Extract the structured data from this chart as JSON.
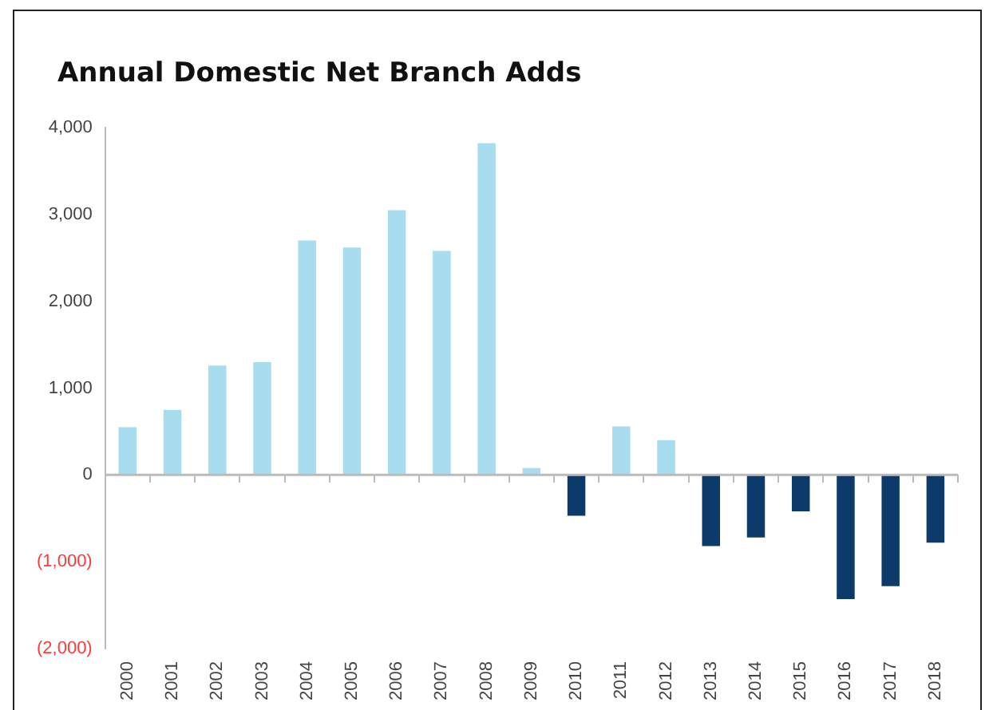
{
  "chart_data": {
    "type": "bar",
    "title": "Annual Domestic Net Branch Adds",
    "categories": [
      "2000",
      "2001",
      "2002",
      "2003",
      "2004",
      "2005",
      "2006",
      "2007",
      "2008",
      "2009",
      "2010",
      "2011",
      "2012",
      "2013",
      "2014",
      "2015",
      "2016",
      "2017",
      "2018"
    ],
    "values": [
      550,
      750,
      1260,
      1300,
      2700,
      2620,
      3050,
      2580,
      3820,
      80,
      -470,
      560,
      400,
      -820,
      -720,
      -420,
      -1430,
      -1280,
      -780
    ],
    "colors": [
      "#a8dcef",
      "#a8dcef",
      "#a8dcef",
      "#a8dcef",
      "#a8dcef",
      "#a8dcef",
      "#a8dcef",
      "#a8dcef",
      "#a8dcef",
      "#a8dcef",
      "#0b3a6b",
      "#a8dcef",
      "#a8dcef",
      "#0b3a6b",
      "#0b3a6b",
      "#0b3a6b",
      "#0b3a6b",
      "#0b3a6b",
      "#0b3a6b"
    ],
    "ylim": [
      -2000,
      4000
    ],
    "yticks": [
      {
        "value": -2000,
        "label": "(2,000)"
      },
      {
        "value": -1000,
        "label": "(1,000)"
      },
      0,
      {
        "value": 1000,
        "label": "1,000"
      },
      {
        "value": 2000,
        "label": "2,000"
      },
      {
        "value": 3000,
        "label": "3,000"
      },
      {
        "value": 4000,
        "label": "4,000"
      }
    ],
    "ref_lines": [
      {
        "axis": "y",
        "value": 0,
        "color": "#bbbbbb"
      }
    ],
    "grid": false,
    "legend": false
  }
}
